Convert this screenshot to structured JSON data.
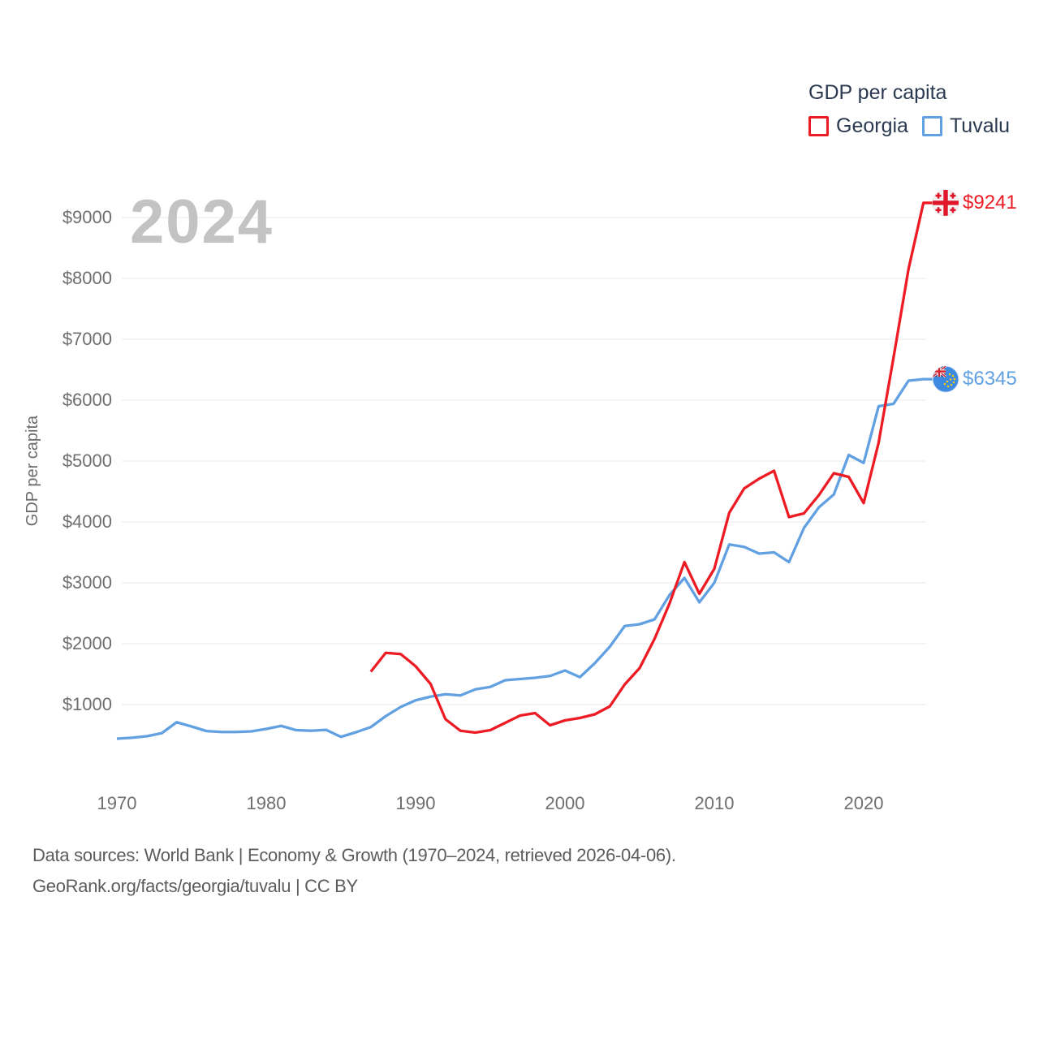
{
  "legend": {
    "title": "GDP per capita",
    "items": [
      {
        "id": "georgia",
        "label": "Georgia",
        "color": "#ed1b24"
      },
      {
        "id": "tuvalu",
        "label": "Tuvalu",
        "color": "#61a0e1"
      }
    ]
  },
  "watermark": "2024",
  "y_axis": {
    "title": "GDP per capita",
    "ticks": [
      "$9000",
      "$8000",
      "$7000",
      "$6000",
      "$5000",
      "$4000",
      "$3000",
      "$2000",
      "$1000"
    ]
  },
  "x_axis": {
    "ticks": [
      "1970",
      "1980",
      "1990",
      "2000",
      "2010",
      "2020"
    ]
  },
  "end_labels": {
    "georgia": "$9241",
    "tuvalu": "$6345"
  },
  "footer": {
    "line1": "Data sources: World Bank | Economy & Growth (1970–2024, retrieved 2026-04-06).",
    "line2": "GeoRank.org/facts/georgia/tuvalu | CC BY"
  },
  "chart_data": {
    "type": "line",
    "title": "GDP per capita",
    "xlabel": "",
    "ylabel": "GDP per capita",
    "xlim": [
      1967,
      2027
    ],
    "ylim": [
      0,
      9600
    ],
    "x_ticks": [
      1970,
      1980,
      1990,
      2000,
      2010,
      2020
    ],
    "y_ticks": [
      1000,
      2000,
      3000,
      4000,
      5000,
      6000,
      7000,
      8000,
      9000
    ],
    "grid": "horizontal",
    "legend_position": "top-right",
    "grid_color": "#e8e8e8",
    "series": [
      {
        "name": "Tuvalu",
        "color": "#61a0e1",
        "end_label": "$6345",
        "end_value": 6345,
        "years": [
          1970,
          1971,
          1972,
          1973,
          1974,
          1975,
          1976,
          1977,
          1978,
          1979,
          1980,
          1981,
          1982,
          1983,
          1984,
          1985,
          1986,
          1987,
          1988,
          1989,
          1990,
          1991,
          1992,
          1993,
          1994,
          1995,
          1996,
          1997,
          1998,
          1999,
          2000,
          2001,
          2002,
          2003,
          2004,
          2005,
          2006,
          2007,
          2008,
          2009,
          2010,
          2011,
          2012,
          2013,
          2014,
          2015,
          2016,
          2017,
          2018,
          2019,
          2020,
          2021,
          2022,
          2023,
          2024
        ],
        "values": [
          440,
          455,
          480,
          530,
          710,
          640,
          565,
          550,
          550,
          560,
          600,
          650,
          580,
          570,
          585,
          470,
          545,
          630,
          810,
          960,
          1070,
          1130,
          1170,
          1150,
          1250,
          1290,
          1400,
          1420,
          1440,
          1470,
          1560,
          1450,
          1680,
          1950,
          2290,
          2320,
          2400,
          2800,
          3080,
          2680,
          3000,
          3630,
          3590,
          3480,
          3500,
          3340,
          3900,
          4240,
          4450,
          5100,
          4970,
          5900,
          5940,
          6320,
          6345
        ]
      },
      {
        "name": "Georgia",
        "color": "#ed1b24",
        "end_label": "$9241",
        "end_value": 9241,
        "years": [
          1987,
          1988,
          1989,
          1990,
          1991,
          1992,
          1993,
          1994,
          1995,
          1996,
          1997,
          1998,
          1999,
          2000,
          2001,
          2002,
          2003,
          2004,
          2005,
          2006,
          2007,
          2008,
          2009,
          2010,
          2011,
          2012,
          2013,
          2014,
          2015,
          2016,
          2017,
          2018,
          2019,
          2020,
          2021,
          2022,
          2023,
          2024
        ],
        "values": [
          1540,
          1850,
          1830,
          1630,
          1340,
          760,
          570,
          540,
          580,
          700,
          820,
          860,
          660,
          740,
          780,
          840,
          970,
          1330,
          1600,
          2080,
          2660,
          3340,
          2820,
          3230,
          4150,
          4550,
          4710,
          4840,
          4080,
          4140,
          4440,
          4800,
          4740,
          4310,
          5300,
          6700,
          8150,
          9241
        ]
      }
    ]
  }
}
